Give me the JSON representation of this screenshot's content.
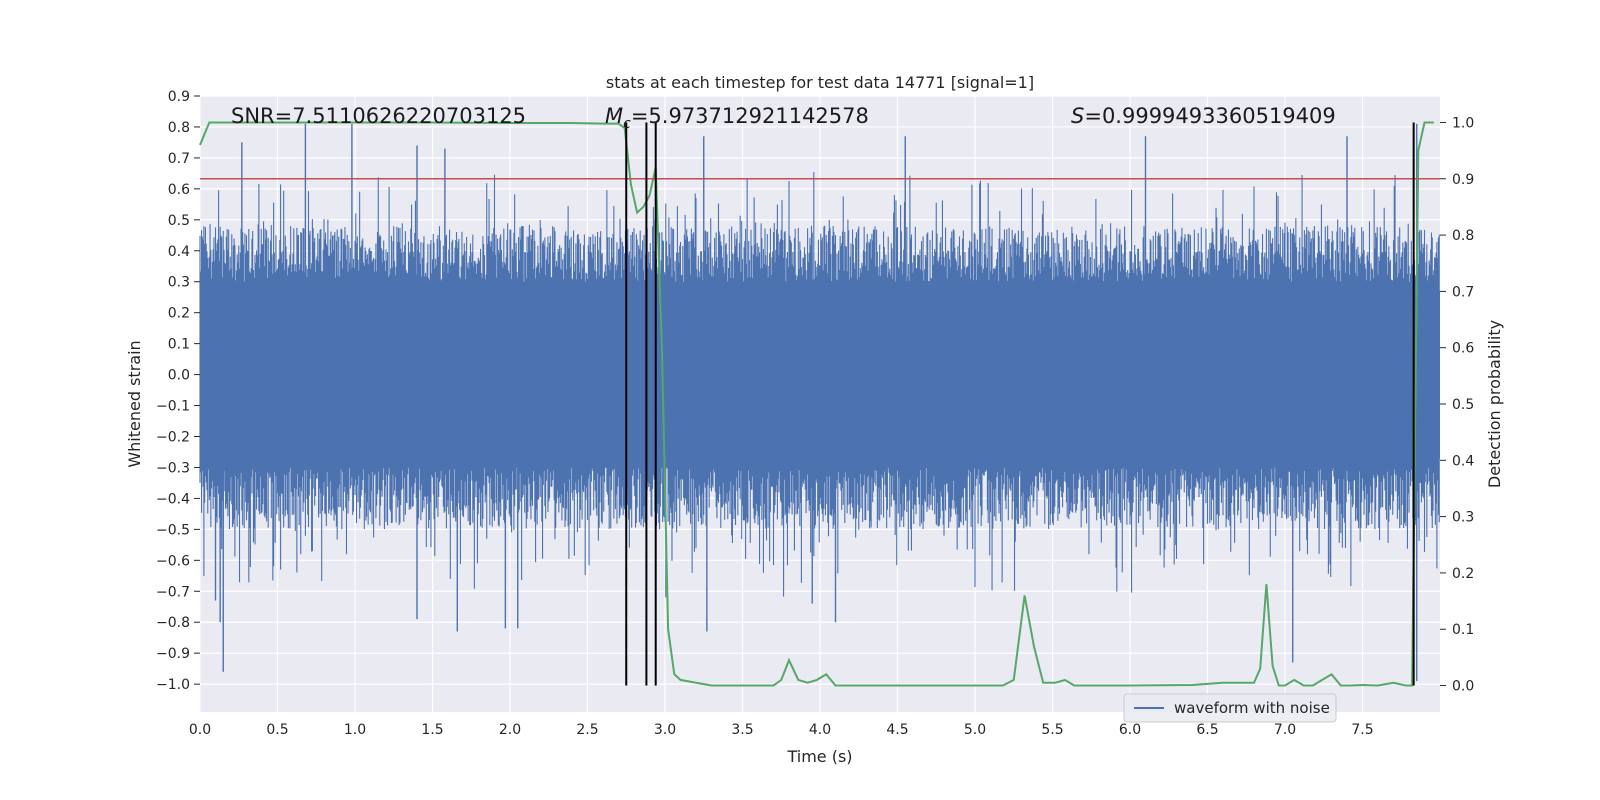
{
  "chart_data": {
    "type": "line",
    "title": "stats at each timestep for test data 14771 [signal=1]",
    "xlabel": "Time (s)",
    "ylabel": "Whitened strain",
    "ylabel_right": "Detection probability",
    "xlim": [
      0.0,
      8.0
    ],
    "ylim": [
      -1.09,
      0.9
    ],
    "ylim_right": [
      -0.047,
      1.047
    ],
    "x_ticks": [
      "0.0",
      "0.5",
      "1.0",
      "1.5",
      "2.0",
      "2.5",
      "3.0",
      "3.5",
      "4.0",
      "4.5",
      "5.0",
      "5.5",
      "6.0",
      "6.5",
      "7.0",
      "7.5"
    ],
    "y_ticks": [
      "0.9",
      "0.8",
      "0.7",
      "0.6",
      "0.5",
      "0.4",
      "0.3",
      "0.2",
      "0.1",
      "0.0",
      "−0.1",
      "−0.2",
      "−0.3",
      "−0.4",
      "−0.5",
      "−0.6",
      "−0.7",
      "−0.8",
      "−0.9",
      "−1.0"
    ],
    "y_ticks_right": [
      "1.0",
      "0.9",
      "0.8",
      "0.7",
      "0.6",
      "0.5",
      "0.4",
      "0.3",
      "0.2",
      "0.1",
      "0.0"
    ],
    "grid": true,
    "legend": {
      "entries": [
        "waveform with noise"
      ],
      "placement": "lower right"
    },
    "annotations": {
      "snr": "SNR=7.5110626220703125",
      "mc_symbol": "M",
      "mc_sub": "c",
      "mc_value": "=5.973712921142578",
      "s_symbol": "S",
      "s_value": "=0.9999493360519409"
    },
    "series": [
      {
        "name": "waveform with noise",
        "axis": "left",
        "color": "#4c72b0",
        "description_level": "dense noise roughly within [-0.6, 0.6], peaks to 0.81 and -0.96"
      },
      {
        "axis": "right",
        "color": "#55a868",
        "x": [
          0.0,
          0.06,
          0.15,
          0.3,
          0.5,
          1.0,
          1.5,
          2.0,
          2.4,
          2.6,
          2.7,
          2.74,
          2.78,
          2.82,
          2.86,
          2.9,
          2.94,
          2.98,
          3.02,
          3.06,
          3.1,
          3.2,
          3.3,
          3.5,
          3.6,
          3.7,
          3.75,
          3.8,
          3.86,
          3.92,
          3.98,
          4.04,
          4.1,
          4.2,
          4.5,
          5.0,
          5.18,
          5.25,
          5.32,
          5.38,
          5.44,
          5.52,
          5.58,
          5.64,
          5.7,
          6.0,
          6.4,
          6.6,
          6.8,
          6.84,
          6.88,
          6.92,
          6.96,
          7.0,
          7.06,
          7.12,
          7.18,
          7.24,
          7.3,
          7.36,
          7.42,
          7.5,
          7.6,
          7.7,
          7.78,
          7.82,
          7.86,
          7.9,
          7.96
        ],
        "y": [
          0.96,
          1.0,
          1.0,
          1.0,
          1.0,
          1.0,
          1.0,
          0.999,
          0.999,
          0.998,
          0.998,
          0.99,
          0.89,
          0.84,
          0.85,
          0.87,
          0.92,
          0.6,
          0.1,
          0.02,
          0.01,
          0.005,
          0.0,
          0.0,
          0.0,
          0.0,
          0.01,
          0.045,
          0.01,
          0.005,
          0.01,
          0.02,
          0.0,
          0.0,
          0.0,
          0.0,
          0.0,
          0.01,
          0.16,
          0.07,
          0.005,
          0.005,
          0.01,
          0.0,
          0.0,
          0.0,
          0.001,
          0.005,
          0.005,
          0.03,
          0.18,
          0.035,
          0.0,
          0.0,
          0.01,
          0.0,
          0.0,
          0.01,
          0.02,
          0.0,
          0.0,
          0.001,
          0.0,
          0.005,
          0.0,
          0.0,
          0.95,
          1.0,
          1.0
        ]
      },
      {
        "axis": "right",
        "type": "hline",
        "color": "#c44e52",
        "y": 0.9
      },
      {
        "axis": "right",
        "type": "vlines",
        "color": "#000000",
        "x": [
          2.75,
          2.88,
          2.94,
          7.83
        ],
        "ymin": 0.0,
        "ymax": 1.0
      }
    ]
  }
}
